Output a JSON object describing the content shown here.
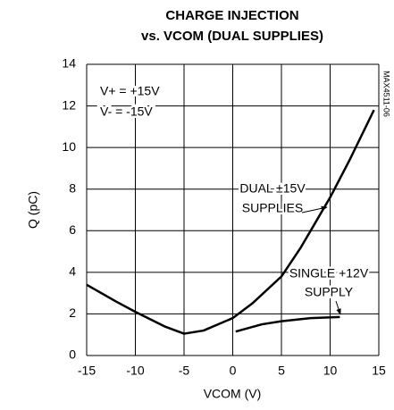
{
  "chart_data": {
    "type": "line",
    "title": [
      "CHARGE INJECTION",
      "vs. VCOM (DUAL SUPPLIES)"
    ],
    "xlabel": "VCOM (V)",
    "ylabel": "Q (pC)",
    "xlim": [
      -15,
      15
    ],
    "xticks": [
      -15,
      -10,
      -5,
      0,
      5,
      10,
      15
    ],
    "ylim": [
      0,
      14
    ],
    "yticks": [
      0,
      2,
      4,
      6,
      8,
      10,
      12,
      14
    ],
    "grid": true,
    "series": [
      {
        "name": "DUAL ±15V SUPPLIES",
        "color": "#000000",
        "x": [
          -15,
          -12,
          -10,
          -7,
          -5,
          -3,
          0,
          2,
          5,
          7,
          10,
          12,
          14.5
        ],
        "values": [
          3.4,
          2.6,
          2.1,
          1.4,
          1.05,
          1.2,
          1.8,
          2.5,
          3.8,
          5.2,
          7.6,
          9.4,
          11.8
        ]
      },
      {
        "name": "SINGLE +12V SUPPLY",
        "color": "#000000",
        "x": [
          0.3,
          3,
          5,
          8,
          11
        ],
        "values": [
          1.15,
          1.5,
          1.65,
          1.8,
          1.85
        ]
      }
    ],
    "annotations": [
      "V+ = +15V",
      "V- = -15V",
      "DUAL ±15V",
      "SUPPLIES",
      "SINGLE +12V",
      "SUPPLY",
      "MAX4511-06"
    ]
  }
}
